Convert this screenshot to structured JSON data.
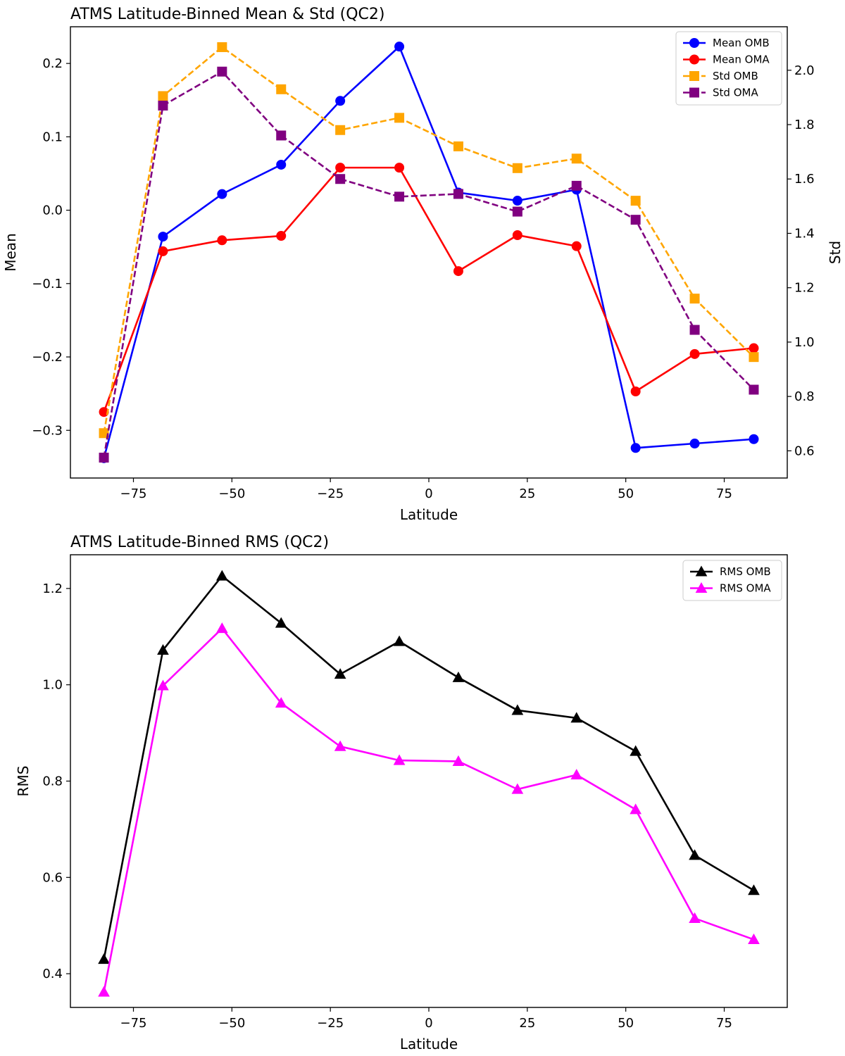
{
  "chart_data": [
    {
      "type": "line",
      "title": "ATMS Latitude-Binned Mean & Std (QC2)",
      "xlabel": "Latitude",
      "ylabel": "Mean",
      "ylabel_right": "Std",
      "xlim": [
        -91,
        91
      ],
      "ylim": [
        -0.365,
        0.25
      ],
      "ylim_right": [
        0.5,
        2.16
      ],
      "x_ticks": [
        -75,
        -50,
        -25,
        0,
        25,
        50,
        75
      ],
      "x_tick_labels": [
        "−75",
        "−50",
        "−25",
        "0",
        "25",
        "50",
        "75"
      ],
      "y_ticks": [
        -0.3,
        -0.2,
        -0.1,
        0.0,
        0.1,
        0.2
      ],
      "y_tick_labels": [
        "−0.3",
        "−0.2",
        "−0.1",
        "0.0",
        "0.1",
        "0.2"
      ],
      "y_ticks_right": [
        0.6,
        0.8,
        1.0,
        1.2,
        1.4,
        1.6,
        1.8,
        2.0
      ],
      "y_tick_labels_right": [
        "0.6",
        "0.8",
        "1.0",
        "1.2",
        "1.4",
        "1.6",
        "1.8",
        "2.0"
      ],
      "grid": false,
      "legend_position": "top-right",
      "x": [
        -82.5,
        -67.5,
        -52.5,
        -37.5,
        -22.5,
        -7.5,
        7.5,
        22.5,
        37.5,
        52.5,
        67.5,
        82.5
      ],
      "series": [
        {
          "name": "Mean OMB",
          "axis": "left",
          "color": "#0000ff",
          "dash": "solid",
          "marker": "circle",
          "values": [
            -0.338,
            -0.036,
            0.022,
            0.062,
            0.149,
            0.223,
            0.024,
            0.013,
            0.028,
            -0.324,
            -0.318,
            -0.312
          ]
        },
        {
          "name": "Mean OMA",
          "axis": "left",
          "color": "#ff0000",
          "dash": "solid",
          "marker": "circle",
          "values": [
            -0.275,
            -0.056,
            -0.041,
            -0.035,
            0.058,
            0.058,
            -0.083,
            -0.034,
            -0.049,
            -0.247,
            -0.196,
            -0.188
          ]
        },
        {
          "name": "Std OMB",
          "axis": "right",
          "color": "#ffa500",
          "dash": "dashed",
          "marker": "square",
          "values": [
            0.665,
            1.905,
            2.085,
            1.93,
            1.78,
            1.825,
            1.72,
            1.64,
            1.675,
            1.52,
            1.16,
            0.945
          ]
        },
        {
          "name": "Std OMA",
          "axis": "right",
          "color": "#800080",
          "dash": "dashed",
          "marker": "square",
          "values": [
            0.575,
            1.87,
            1.995,
            1.76,
            1.6,
            1.535,
            1.545,
            1.48,
            1.575,
            1.45,
            1.045,
            0.825
          ]
        }
      ]
    },
    {
      "type": "line",
      "title": "ATMS Latitude-Binned RMS (QC2)",
      "xlabel": "Latitude",
      "ylabel": "RMS",
      "xlim": [
        -91,
        91
      ],
      "ylim": [
        0.33,
        1.27
      ],
      "x_ticks": [
        -75,
        -50,
        -25,
        0,
        25,
        50,
        75
      ],
      "x_tick_labels": [
        "−75",
        "−50",
        "−25",
        "0",
        "25",
        "50",
        "75"
      ],
      "y_ticks": [
        0.4,
        0.6,
        0.8,
        1.0,
        1.2
      ],
      "y_tick_labels": [
        "0.4",
        "0.6",
        "0.8",
        "1.0",
        "1.2"
      ],
      "grid": false,
      "legend_position": "top-right",
      "x": [
        -82.5,
        -67.5,
        -52.5,
        -37.5,
        -22.5,
        -7.5,
        7.5,
        22.5,
        37.5,
        52.5,
        67.5,
        82.5
      ],
      "series": [
        {
          "name": "RMS OMB",
          "color": "#000000",
          "dash": "solid",
          "marker": "triangle",
          "values": [
            0.43,
            1.072,
            1.226,
            1.128,
            1.022,
            1.09,
            1.015,
            0.947,
            0.931,
            0.862,
            0.646,
            0.573
          ]
        },
        {
          "name": "RMS OMA",
          "color": "#ff00ff",
          "dash": "solid",
          "marker": "triangle",
          "values": [
            0.362,
            0.998,
            1.117,
            0.962,
            0.872,
            0.843,
            0.841,
            0.783,
            0.813,
            0.741,
            0.515,
            0.471
          ]
        }
      ]
    }
  ]
}
